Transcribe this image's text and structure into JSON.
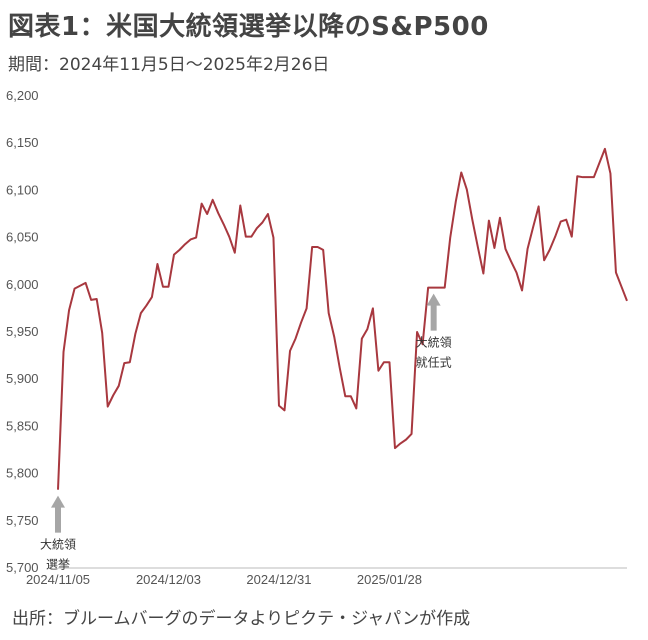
{
  "header": {
    "title": "図表1：米国大統領選挙以降のS&P500",
    "subtitle": "期間：2024年11月5日～2025年2月26日"
  },
  "footer": {
    "source": "出所：ブルームバーグのデータよりピクテ・ジャパンが作成"
  },
  "colors": {
    "line": "#a8383f",
    "arrow": "#a6a6a6",
    "axis": "#bbbbbb"
  },
  "chart_data": {
    "type": "line",
    "title": "",
    "xlabel": "",
    "ylabel": "",
    "ylim": [
      5700,
      6200
    ],
    "y_ticks": [
      "5,700",
      "5,750",
      "5,800",
      "5,850",
      "5,900",
      "5,950",
      "6,000",
      "6,050",
      "6,100",
      "6,150",
      "6,200"
    ],
    "y_tick_values": [
      5700,
      5750,
      5800,
      5850,
      5900,
      5950,
      6000,
      6050,
      6100,
      6150,
      6200
    ],
    "x_tick_labels": [
      "2024/11/05",
      "2024/12/03",
      "2024/12/31",
      "2025/01/28"
    ],
    "x_tick_index": [
      0,
      20,
      40,
      60
    ],
    "grid": false,
    "series": [
      {
        "values": [
          5783,
          5929,
          5973,
          5996,
          5999,
          6002,
          5984,
          5985,
          5949,
          5871,
          5883,
          5893,
          5917,
          5918,
          5948,
          5970,
          5978,
          5987,
          6022,
          5998,
          5998,
          6032,
          6037,
          6043,
          6048,
          6050,
          6086,
          6075,
          6090,
          6076,
          6064,
          6051,
          6034,
          6084,
          6051,
          6051,
          6060,
          6066,
          6075,
          6050,
          5872,
          5867,
          5930,
          5943,
          5960,
          5975,
          6040,
          6040,
          6037,
          5970,
          5945,
          5912,
          5882,
          5882,
          5869,
          5943,
          5953,
          5975,
          5909,
          5918,
          5918,
          5827,
          5832,
          5836,
          5842,
          5950,
          5937,
          5997,
          5997,
          5997,
          5997,
          6050,
          6088,
          6119,
          6101,
          6069,
          6040,
          6012,
          6068,
          6039,
          6071,
          6038,
          6025,
          6013,
          5994,
          6038,
          6061,
          6083,
          6026,
          6037,
          6051,
          6067,
          6069,
          6051,
          6115,
          6114,
          6114,
          6114,
          6129,
          6144,
          6118,
          6013,
          5998,
          5983
        ]
      }
    ],
    "annotations": [
      {
        "lines": [
          "大統領",
          "選挙"
        ],
        "index": 0
      },
      {
        "lines": [
          "大統領",
          "就任式"
        ],
        "index": 68
      }
    ]
  }
}
